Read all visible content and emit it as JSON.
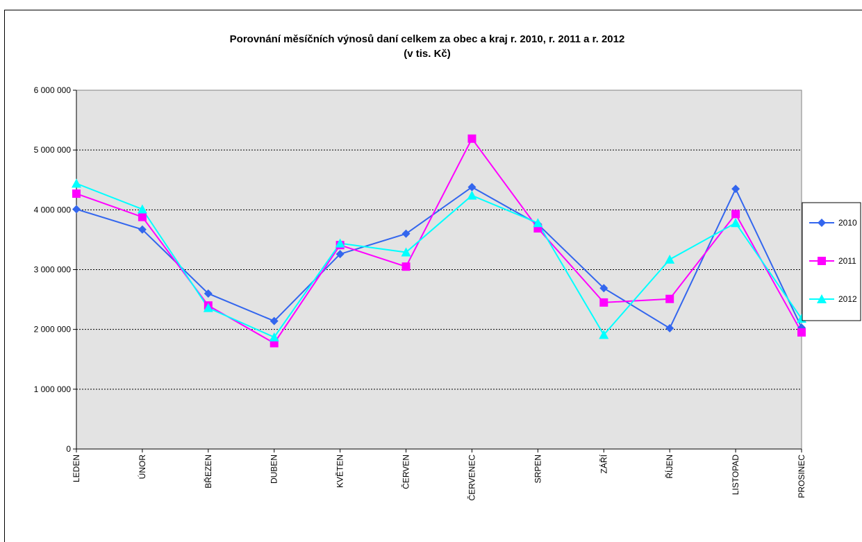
{
  "chart_data": {
    "type": "line",
    "title": "Porovnání měsíčních výnosů daní celkem za obec a kraj r. 2010, r. 2011 a r. 2012",
    "subtitle": "(v tis. Kč)",
    "xlabel": "",
    "ylabel": "",
    "categories": [
      "LEDEN",
      "ÚNOR",
      "BŘEZEN",
      "DUBEN",
      "KVĚTEN",
      "ČERVEN",
      "ČERVENEC",
      "SRPEN",
      "ZÁŘÍ",
      "ŘÍJEN",
      "LISTOPAD",
      "PROSINEC"
    ],
    "ylim": [
      0,
      6000000
    ],
    "yticks": [
      0,
      1000000,
      2000000,
      3000000,
      4000000,
      5000000,
      6000000
    ],
    "ytick_labels": [
      "0",
      "1 000 000",
      "2 000 000",
      "3 000 000",
      "4 000 000",
      "5 000 000",
      "6 000 000"
    ],
    "grid": true,
    "legend_position": "right",
    "series": [
      {
        "name": "2010",
        "color": "#3366ee",
        "marker": "diamond",
        "values": [
          4010000,
          3670000,
          2600000,
          2140000,
          3260000,
          3600000,
          4380000,
          3760000,
          2690000,
          2020000,
          4350000,
          2030000
        ]
      },
      {
        "name": "2011",
        "color": "#ff00ff",
        "marker": "square",
        "values": [
          4270000,
          3880000,
          2400000,
          1770000,
          3410000,
          3050000,
          5190000,
          3690000,
          2450000,
          2510000,
          3930000,
          1950000
        ]
      },
      {
        "name": "2012",
        "color": "#00ffff",
        "marker": "triangle",
        "values": [
          4440000,
          4010000,
          2360000,
          1870000,
          3440000,
          3290000,
          4240000,
          3780000,
          1910000,
          3170000,
          3780000,
          2180000
        ]
      }
    ],
    "colors": {
      "plot_background": "#e3e3e3",
      "grid": "#000000"
    }
  }
}
